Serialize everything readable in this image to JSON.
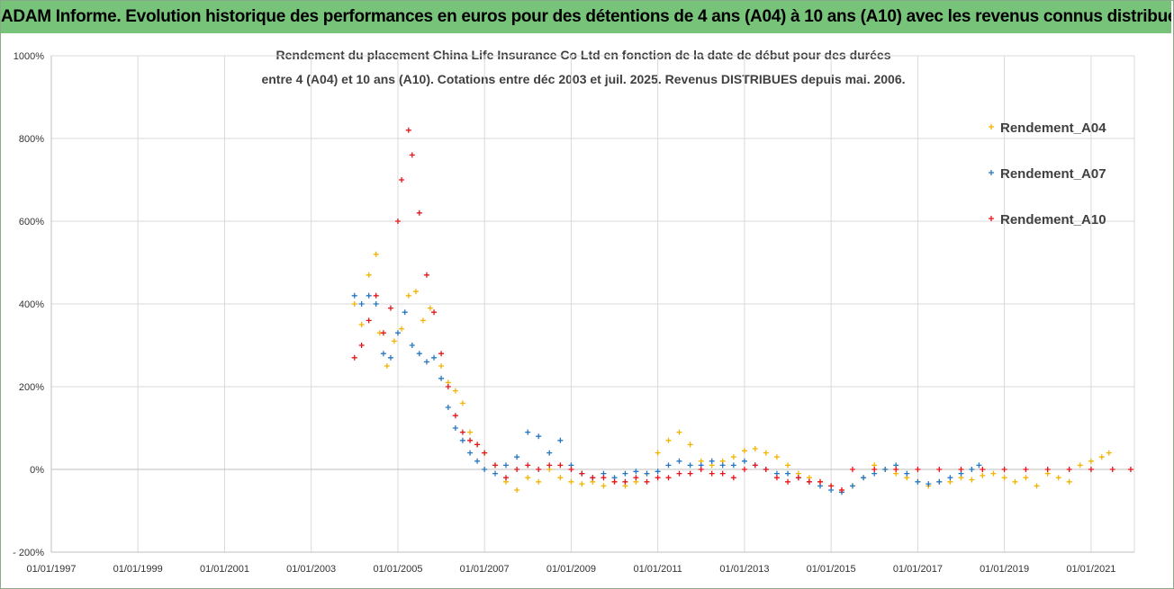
{
  "header": {
    "title": "ADAM Informe. Evolution historique des performances en euros pour des détentions de 4 ans (A04) à 10 ans (A10) avec les revenus connus distribués"
  },
  "chart_data": {
    "type": "scatter",
    "title_line1": "Rendement du placement China Life Insurance Co Ltd en fonction de la date de début pour des durées",
    "title_line2": "entre 4 (A04) et 10 ans (A10). Cotations entre déc 2003 et juil. 2025. Revenus DISTRIBUES depuis mai. 2006.",
    "xlabel": "",
    "ylabel": "",
    "x_ticks": [
      "01/01/1997",
      "01/01/1999",
      "01/01/2001",
      "01/01/2003",
      "01/01/2005",
      "01/01/2007",
      "01/01/2009",
      "01/01/2011",
      "01/01/2013",
      "01/01/2015",
      "01/01/2017",
      "01/01/2019",
      "01/01/2021"
    ],
    "y_ticks": [
      "1000%",
      "800%",
      "600%",
      "400%",
      "200%",
      "0%",
      "- 200%"
    ],
    "xlim": [
      "1997-01-01",
      "2022-01-01"
    ],
    "ylim": [
      -200,
      1000
    ],
    "grid": true,
    "legend_position": "right",
    "series": [
      {
        "name": "Rendement_A04",
        "color": "#f2b400",
        "points": [
          [
            "2004-01-01",
            400
          ],
          [
            "2004-03-01",
            350
          ],
          [
            "2004-05-01",
            470
          ],
          [
            "2004-07-01",
            520
          ],
          [
            "2004-08-01",
            330
          ],
          [
            "2004-10-01",
            250
          ],
          [
            "2004-12-01",
            310
          ],
          [
            "2005-02-01",
            340
          ],
          [
            "2005-04-01",
            420
          ],
          [
            "2005-06-01",
            430
          ],
          [
            "2005-08-01",
            360
          ],
          [
            "2005-10-01",
            390
          ],
          [
            "2006-01-01",
            250
          ],
          [
            "2006-03-01",
            210
          ],
          [
            "2006-05-01",
            190
          ],
          [
            "2006-07-01",
            160
          ],
          [
            "2006-09-01",
            90
          ],
          [
            "2006-11-01",
            60
          ],
          [
            "2007-01-01",
            40
          ],
          [
            "2007-04-01",
            10
          ],
          [
            "2007-07-01",
            -30
          ],
          [
            "2007-10-01",
            -50
          ],
          [
            "2008-01-01",
            -20
          ],
          [
            "2008-04-01",
            -30
          ],
          [
            "2008-07-01",
            0
          ],
          [
            "2008-10-01",
            -20
          ],
          [
            "2009-01-01",
            -30
          ],
          [
            "2009-04-01",
            -35
          ],
          [
            "2009-07-01",
            -30
          ],
          [
            "2009-10-01",
            -40
          ],
          [
            "2010-01-01",
            -30
          ],
          [
            "2010-04-01",
            -40
          ],
          [
            "2010-07-01",
            -30
          ],
          [
            "2010-10-01",
            -10
          ],
          [
            "2011-01-01",
            40
          ],
          [
            "2011-04-01",
            70
          ],
          [
            "2011-07-01",
            90
          ],
          [
            "2011-10-01",
            60
          ],
          [
            "2012-01-01",
            20
          ],
          [
            "2012-04-01",
            10
          ],
          [
            "2012-07-01",
            20
          ],
          [
            "2012-10-01",
            30
          ],
          [
            "2013-01-01",
            45
          ],
          [
            "2013-04-01",
            50
          ],
          [
            "2013-07-01",
            40
          ],
          [
            "2013-10-01",
            30
          ],
          [
            "2014-01-01",
            10
          ],
          [
            "2014-04-01",
            -10
          ],
          [
            "2014-07-01",
            -20
          ],
          [
            "2014-10-01",
            -30
          ],
          [
            "2015-01-01",
            -40
          ],
          [
            "2015-04-01",
            -50
          ],
          [
            "2015-07-01",
            -40
          ],
          [
            "2015-10-01",
            -20
          ],
          [
            "2016-01-01",
            10
          ],
          [
            "2016-04-01",
            0
          ],
          [
            "2016-07-01",
            -10
          ],
          [
            "2016-10-01",
            -20
          ],
          [
            "2017-01-01",
            -30
          ],
          [
            "2017-04-01",
            -40
          ],
          [
            "2017-07-01",
            -30
          ],
          [
            "2017-10-01",
            -30
          ],
          [
            "2018-01-01",
            -20
          ],
          [
            "2018-04-01",
            -25
          ],
          [
            "2018-07-01",
            -15
          ],
          [
            "2018-10-01",
            -10
          ],
          [
            "2019-01-01",
            -20
          ],
          [
            "2019-04-01",
            -30
          ],
          [
            "2019-07-01",
            -20
          ],
          [
            "2019-10-01",
            -40
          ],
          [
            "2020-01-01",
            -10
          ],
          [
            "2020-04-01",
            -20
          ],
          [
            "2020-07-01",
            -30
          ],
          [
            "2020-10-01",
            10
          ],
          [
            "2021-01-01",
            20
          ],
          [
            "2021-04-01",
            30
          ],
          [
            "2021-06-01",
            40
          ]
        ]
      },
      {
        "name": "Rendement_A07",
        "color": "#2477c4",
        "points": [
          [
            "2004-01-01",
            420
          ],
          [
            "2004-03-01",
            400
          ],
          [
            "2004-05-01",
            420
          ],
          [
            "2004-07-01",
            400
          ],
          [
            "2004-09-01",
            280
          ],
          [
            "2004-11-01",
            270
          ],
          [
            "2005-01-01",
            330
          ],
          [
            "2005-03-01",
            380
          ],
          [
            "2005-05-01",
            300
          ],
          [
            "2005-07-01",
            280
          ],
          [
            "2005-09-01",
            260
          ],
          [
            "2005-11-01",
            270
          ],
          [
            "2006-01-01",
            220
          ],
          [
            "2006-03-01",
            150
          ],
          [
            "2006-05-01",
            100
          ],
          [
            "2006-07-01",
            70
          ],
          [
            "2006-09-01",
            40
          ],
          [
            "2006-11-01",
            20
          ],
          [
            "2007-01-01",
            0
          ],
          [
            "2007-04-01",
            -10
          ],
          [
            "2007-07-01",
            10
          ],
          [
            "2007-10-01",
            30
          ],
          [
            "2008-01-01",
            90
          ],
          [
            "2008-04-01",
            80
          ],
          [
            "2008-07-01",
            40
          ],
          [
            "2008-10-01",
            70
          ],
          [
            "2009-01-01",
            10
          ],
          [
            "2009-04-01",
            -10
          ],
          [
            "2009-07-01",
            -20
          ],
          [
            "2009-10-01",
            -10
          ],
          [
            "2010-01-01",
            -20
          ],
          [
            "2010-04-01",
            -10
          ],
          [
            "2010-07-01",
            -5
          ],
          [
            "2010-10-01",
            -10
          ],
          [
            "2011-01-01",
            -5
          ],
          [
            "2011-04-01",
            10
          ],
          [
            "2011-07-01",
            20
          ],
          [
            "2011-10-01",
            10
          ],
          [
            "2012-01-01",
            10
          ],
          [
            "2012-04-01",
            20
          ],
          [
            "2012-07-01",
            10
          ],
          [
            "2012-10-01",
            10
          ],
          [
            "2013-01-01",
            20
          ],
          [
            "2013-04-01",
            10
          ],
          [
            "2013-07-01",
            0
          ],
          [
            "2013-10-01",
            -10
          ],
          [
            "2014-01-01",
            -10
          ],
          [
            "2014-04-01",
            -20
          ],
          [
            "2014-07-01",
            -30
          ],
          [
            "2014-10-01",
            -40
          ],
          [
            "2015-01-01",
            -50
          ],
          [
            "2015-04-01",
            -55
          ],
          [
            "2015-07-01",
            -40
          ],
          [
            "2015-10-01",
            -20
          ],
          [
            "2016-01-01",
            -10
          ],
          [
            "2016-04-01",
            0
          ],
          [
            "2016-07-01",
            10
          ],
          [
            "2016-10-01",
            -10
          ],
          [
            "2017-01-01",
            -30
          ],
          [
            "2017-04-01",
            -35
          ],
          [
            "2017-07-01",
            -30
          ],
          [
            "2017-10-01",
            -20
          ],
          [
            "2018-01-01",
            -10
          ],
          [
            "2018-04-01",
            0
          ],
          [
            "2018-06-01",
            10
          ]
        ]
      },
      {
        "name": "Rendement_A10",
        "color": "#e8141a",
        "points": [
          [
            "2004-01-01",
            270
          ],
          [
            "2004-03-01",
            300
          ],
          [
            "2004-05-01",
            360
          ],
          [
            "2004-07-01",
            420
          ],
          [
            "2004-09-01",
            330
          ],
          [
            "2004-11-01",
            390
          ],
          [
            "2005-01-01",
            600
          ],
          [
            "2005-02-01",
            700
          ],
          [
            "2005-04-01",
            820
          ],
          [
            "2005-05-01",
            760
          ],
          [
            "2005-07-01",
            620
          ],
          [
            "2005-09-01",
            470
          ],
          [
            "2005-11-01",
            380
          ],
          [
            "2006-01-01",
            280
          ],
          [
            "2006-03-01",
            200
          ],
          [
            "2006-05-01",
            130
          ],
          [
            "2006-07-01",
            90
          ],
          [
            "2006-09-01",
            70
          ],
          [
            "2006-11-01",
            60
          ],
          [
            "2007-01-01",
            40
          ],
          [
            "2007-04-01",
            10
          ],
          [
            "2007-07-01",
            -20
          ],
          [
            "2007-10-01",
            0
          ],
          [
            "2008-01-01",
            10
          ],
          [
            "2008-04-01",
            0
          ],
          [
            "2008-07-01",
            10
          ],
          [
            "2008-10-01",
            10
          ],
          [
            "2009-01-01",
            0
          ],
          [
            "2009-04-01",
            -10
          ],
          [
            "2009-07-01",
            -20
          ],
          [
            "2009-10-01",
            -20
          ],
          [
            "2010-01-01",
            -30
          ],
          [
            "2010-04-01",
            -30
          ],
          [
            "2010-07-01",
            -20
          ],
          [
            "2010-10-01",
            -30
          ],
          [
            "2011-01-01",
            -20
          ],
          [
            "2011-04-01",
            -20
          ],
          [
            "2011-07-01",
            -10
          ],
          [
            "2011-10-01",
            -10
          ],
          [
            "2012-01-01",
            0
          ],
          [
            "2012-04-01",
            -10
          ],
          [
            "2012-07-01",
            -10
          ],
          [
            "2012-10-01",
            -20
          ],
          [
            "2013-01-01",
            0
          ],
          [
            "2013-04-01",
            10
          ],
          [
            "2013-07-01",
            0
          ],
          [
            "2013-10-01",
            -20
          ],
          [
            "2014-01-01",
            -30
          ],
          [
            "2014-04-01",
            -20
          ],
          [
            "2014-07-01",
            -30
          ],
          [
            "2014-10-01",
            -30
          ],
          [
            "2015-01-01",
            -40
          ],
          [
            "2015-04-01",
            -50
          ],
          [
            "2015-07-01",
            0
          ],
          [
            "2016-01-01",
            0
          ],
          [
            "2016-07-01",
            0
          ],
          [
            "2017-01-01",
            0
          ],
          [
            "2017-07-01",
            0
          ],
          [
            "2018-01-01",
            0
          ],
          [
            "2018-07-01",
            0
          ],
          [
            "2019-01-01",
            0
          ],
          [
            "2019-07-01",
            0
          ],
          [
            "2020-01-01",
            0
          ],
          [
            "2020-07-01",
            0
          ],
          [
            "2021-01-01",
            0
          ],
          [
            "2021-07-01",
            0
          ],
          [
            "2021-12-01",
            0
          ]
        ]
      }
    ]
  }
}
